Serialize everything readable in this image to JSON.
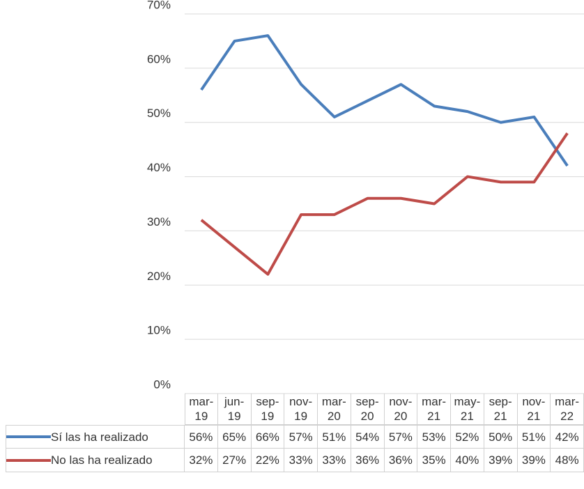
{
  "chart_data": {
    "type": "line",
    "categories": [
      "mar-19",
      "jun-19",
      "sep-19",
      "nov-19",
      "mar-20",
      "sep-20",
      "nov-20",
      "mar-21",
      "may-21",
      "sep-21",
      "nov-21",
      "mar-22"
    ],
    "series": [
      {
        "name": "Sí las ha realizado",
        "color": "#4a7ebb",
        "values": [
          56,
          65,
          66,
          57,
          51,
          54,
          57,
          53,
          52,
          50,
          51,
          42
        ],
        "value_labels": [
          "56%",
          "65%",
          "66%",
          "57%",
          "51%",
          "54%",
          "57%",
          "53%",
          "52%",
          "50%",
          "51%",
          "42%"
        ]
      },
      {
        "name": "No las ha realizado",
        "color": "#be4b48",
        "values": [
          32,
          27,
          22,
          33,
          33,
          36,
          36,
          35,
          40,
          39,
          39,
          48
        ],
        "value_labels": [
          "32%",
          "27%",
          "22%",
          "33%",
          "33%",
          "36%",
          "36%",
          "35%",
          "40%",
          "39%",
          "39%",
          "48%"
        ]
      }
    ],
    "ylim": [
      0,
      70
    ],
    "yticks": [
      {
        "value": 0,
        "label": "0%"
      },
      {
        "value": 10,
        "label": "10%"
      },
      {
        "value": 20,
        "label": "20%"
      },
      {
        "value": 30,
        "label": "30%"
      },
      {
        "value": 40,
        "label": "40%"
      },
      {
        "value": 50,
        "label": "50%"
      },
      {
        "value": 60,
        "label": "60%"
      },
      {
        "value": 70,
        "label": "70%"
      }
    ],
    "grid": true
  }
}
